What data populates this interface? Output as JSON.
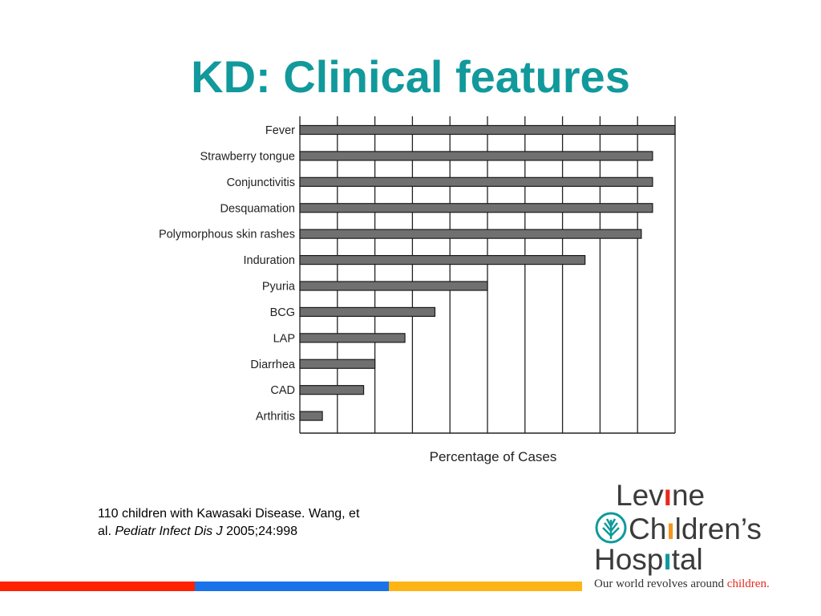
{
  "slide": {
    "title": "KD: Clinical features"
  },
  "chart_data": {
    "type": "bar",
    "orientation": "horizontal",
    "title": "",
    "xlabel": "Percentage of Cases",
    "ylabel": "",
    "categories": [
      "Fever",
      "Strawberry tongue",
      "Conjunctivitis",
      "Desquamation",
      "Polymorphous skin rashes",
      "Induration",
      "Pyuria",
      "BCG",
      "LAP",
      "Diarrhea",
      "CAD",
      "Arthritis"
    ],
    "values": [
      100,
      94,
      94,
      94,
      91,
      76,
      50,
      36,
      28,
      20,
      17,
      6
    ],
    "xlim": [
      0,
      100
    ],
    "grid": true,
    "tick_labels_shown": false,
    "bar_color": "#707070"
  },
  "citation": {
    "line1": "110 children with Kawasaki Disease. Wang, et",
    "line2_prefix": "al. ",
    "journal": "Pediatr Infect Dis J",
    "line2_suffix": " 2005;24:998"
  },
  "logo": {
    "line1_a": "Lev",
    "line1_i": "ı",
    "line1_b": "ne",
    "line2_a": "Ch",
    "line2_i": "ı",
    "line2_b": "ldren’s",
    "line3_a": "Hosp",
    "line3_i": "ı",
    "line3_b": "tal",
    "tagline_prefix": "Our world revolves around ",
    "tagline_accent": "children."
  },
  "colors": {
    "title": "#11999b",
    "stripe_red": "#ff2200",
    "stripe_blue": "#1a73e8",
    "stripe_yellow": "#fdb515",
    "logo_red": "#e8291c",
    "logo_orange": "#f7941d",
    "logo_teal": "#11999b"
  }
}
